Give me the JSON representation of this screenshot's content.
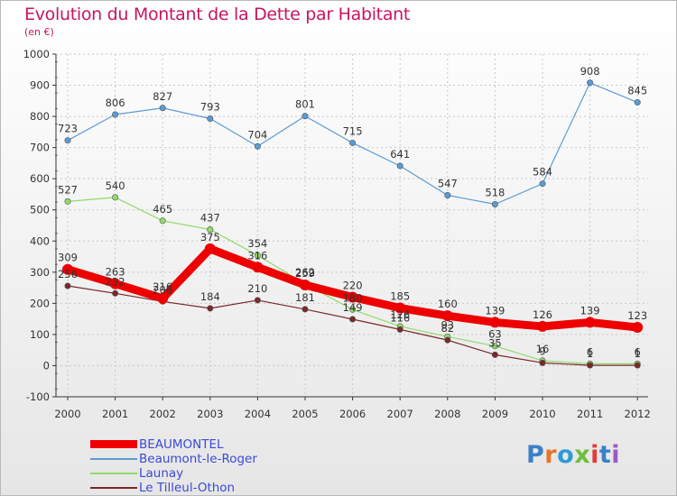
{
  "header": {
    "title": "Evolution du Montant de la Dette par Habitant",
    "subtitle": "(en €)"
  },
  "colors": {
    "title": "#c71562",
    "grid": "#c8c8c8",
    "axis": "#333333",
    "legend_text": "#3c4ad6"
  },
  "logo": {
    "letters": [
      "P",
      "r",
      "o",
      "x",
      "i",
      "t",
      "i"
    ],
    "colors": [
      "#3a80c8",
      "#e8732a",
      "#2e9bd6",
      "#6cbf3d",
      "#e23c3c",
      "#3a80c8",
      "#9c58c8"
    ]
  },
  "chart_data": {
    "type": "line",
    "title": "Evolution du Montant de la Dette par Habitant",
    "subtitle": "(en €)",
    "x": [
      "2000",
      "2001",
      "2002",
      "2003",
      "2004",
      "2005",
      "2006",
      "2007",
      "2008",
      "2009",
      "2010",
      "2011",
      "2012"
    ],
    "ylim": [
      -100,
      1000
    ],
    "yticks": [
      -100,
      0,
      100,
      200,
      300,
      400,
      500,
      600,
      700,
      800,
      900,
      1000
    ],
    "grid": true,
    "legend": "bottom-left",
    "series": [
      {
        "name": "BEAUMONTEL",
        "color": "#ee0000",
        "values": [
          309,
          263,
          216,
          375,
          316,
          259,
          220,
          185,
          160,
          139,
          126,
          139,
          123
        ],
        "labels": [
          "309",
          "263",
          "216",
          "375",
          "316",
          "259",
          "220",
          "185",
          "160",
          "139",
          "126",
          "139",
          "123"
        ]
      },
      {
        "name": "Beaumont-le-Roger",
        "color": "#5b9bd5",
        "values": [
          723,
          806,
          827,
          793,
          704,
          801,
          715,
          641,
          547,
          518,
          584,
          908,
          845
        ],
        "labels": [
          "723",
          "806",
          "827",
          "793",
          "704",
          "801",
          "715",
          "641",
          "547",
          "518",
          "584",
          "908",
          "845"
        ]
      },
      {
        "name": "Launay",
        "color": "#8fdb6a",
        "values": [
          527,
          540,
          465,
          437,
          354,
          262,
          180,
          126,
          93,
          63,
          16,
          6,
          6
        ],
        "labels": [
          "527",
          "540",
          "465",
          "437",
          "354",
          "262",
          "180",
          "126",
          "93",
          "63",
          "16",
          "6",
          "6"
        ]
      },
      {
        "name": "Le Tilleul-Othon",
        "color": "#7a2828",
        "values": [
          256,
          232,
          206,
          184,
          210,
          181,
          149,
          116,
          82,
          35,
          9,
          1,
          1
        ],
        "labels": [
          "256",
          "232",
          "206",
          "184",
          "210",
          "181",
          "149",
          "116",
          "82",
          "35",
          "9",
          "1",
          "1"
        ]
      }
    ]
  }
}
